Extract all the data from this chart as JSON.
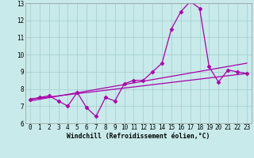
{
  "xlabel": "Windchill (Refroidissement éolien,°C)",
  "bg_color": "#c8eaea",
  "grid_color": "#a8d0d0",
  "line_color": "#aa00aa",
  "xlim": [
    -0.5,
    23.5
  ],
  "ylim": [
    6,
    13
  ],
  "yticks": [
    6,
    7,
    8,
    9,
    10,
    11,
    12,
    13
  ],
  "xticks": [
    0,
    1,
    2,
    3,
    4,
    5,
    6,
    7,
    8,
    9,
    10,
    11,
    12,
    13,
    14,
    15,
    16,
    17,
    18,
    19,
    20,
    21,
    22,
    23
  ],
  "series1_x": [
    0,
    1,
    2,
    3,
    4,
    5,
    6,
    7,
    8,
    9,
    10,
    11,
    12,
    13,
    14,
    15,
    16,
    17,
    18,
    19,
    20,
    21,
    22,
    23
  ],
  "series1_y": [
    7.4,
    7.5,
    7.6,
    7.3,
    7.0,
    7.8,
    6.9,
    6.4,
    7.5,
    7.3,
    8.3,
    8.5,
    8.5,
    9.0,
    9.5,
    11.5,
    12.5,
    13.1,
    12.7,
    9.3,
    8.4,
    9.1,
    9.0,
    8.9
  ],
  "series2_x": [
    0,
    23
  ],
  "series2_y": [
    7.4,
    8.9
  ],
  "series3_x": [
    0,
    23
  ],
  "series3_y": [
    7.3,
    9.5
  ],
  "markersize": 2.5,
  "linewidth": 0.9,
  "tick_fontsize": 5.5,
  "xlabel_fontsize": 5.8,
  "font_family": "monospace"
}
